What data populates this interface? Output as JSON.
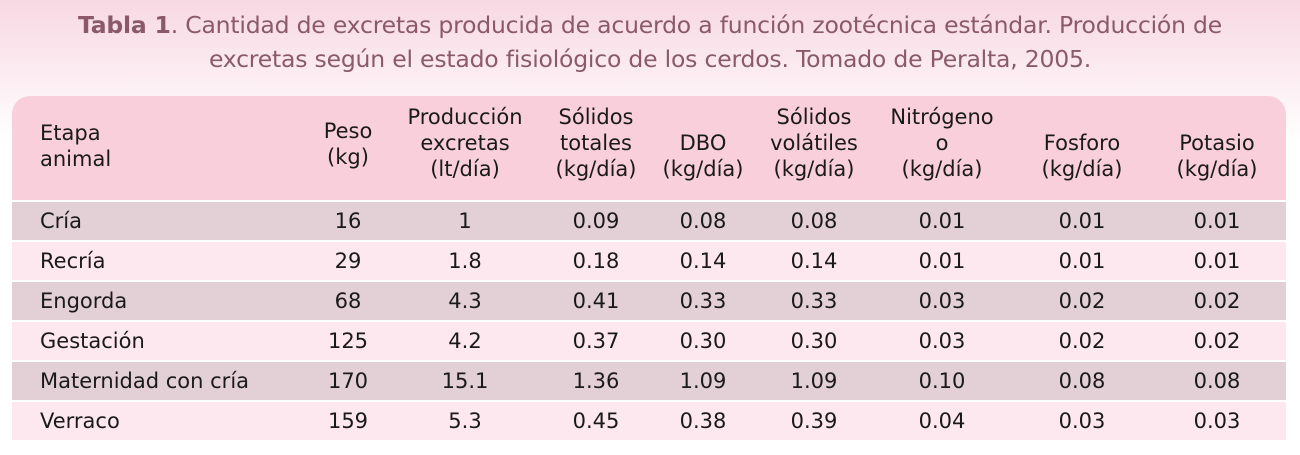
{
  "caption": {
    "label": "Tabla 1",
    "line1_rest": ". Cantidad de excretas producida de acuerdo a función zootécnica estándar. Producción de",
    "line2": "excretas según el estado fisiológico de los cerdos. Tomado de Peralta, 2005."
  },
  "headers": [
    [
      "Etapa",
      "animal"
    ],
    [
      "Peso",
      "(kg)"
    ],
    [
      "Producción",
      "excretas",
      "(lt/día)"
    ],
    [
      "Sólidos",
      "totales",
      "(kg/día)"
    ],
    [
      "DBO",
      "(kg/día)"
    ],
    [
      "Sólidos",
      "volátiles",
      "(kg/día)"
    ],
    [
      "Nitrógeno",
      "o",
      "(kg/día)"
    ],
    [
      "Fosforo",
      "(kg/día)"
    ],
    [
      "Potasio",
      "(kg/día)"
    ]
  ],
  "rows": [
    [
      "Cría",
      "16",
      "1",
      "0.09",
      "0.08",
      "0.08",
      "0.01",
      "0.01",
      "0.01"
    ],
    [
      "Recría",
      "29",
      "1.8",
      "0.18",
      "0.14",
      "0.14",
      "0.01",
      "0.01",
      "0.01"
    ],
    [
      "Engorda",
      "68",
      "4.3",
      "0.41",
      "0.33",
      "0.33",
      "0.03",
      "0.02",
      "0.02"
    ],
    [
      "Gestación",
      "125",
      "4.2",
      "0.37",
      "0.30",
      "0.30",
      "0.03",
      "0.02",
      "0.02"
    ],
    [
      "Maternidad con cría",
      "170",
      "15.1",
      "1.36",
      "1.09",
      "1.09",
      "0.10",
      "0.08",
      "0.08"
    ],
    [
      "Verraco",
      "159",
      "5.3",
      "0.45",
      "0.38",
      "0.39",
      "0.04",
      "0.03",
      "0.03"
    ]
  ],
  "colors": {
    "header_bg": "#f9cfdb",
    "row_odd": "#e3cfd6",
    "row_even": "#fde8ef",
    "caption": "#8a5a6b"
  }
}
